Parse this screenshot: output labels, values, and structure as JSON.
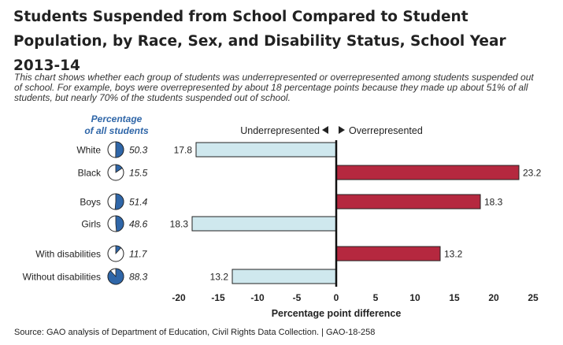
{
  "header": {
    "title": "Students Suspended from School Compared to Student Population, by Race, Sex, and Disability Status, School Year 2013-14"
  },
  "intro_text": "This chart shows whether each group of students was underrepresented or overrepresented among students suspended out of school. For example, boys were overrepresented by about 18 percentage points because they made up about 51% of all students, but nearly 70% of the students suspended out of school.",
  "source_text": "Source: GAO analysis of Department of Education, Civil Rights Data Collection.  |  GAO-18-258",
  "chart_data": {
    "type": "bar",
    "orientation": "horizontal",
    "population_header": [
      "Percentage",
      "of all students"
    ],
    "direction_label_under": "Underrepresented",
    "direction_label_over": "Overrepresented",
    "categories": [
      "White",
      "Black",
      "Boys",
      "Girls",
      "With disabilities",
      "Without disabilities"
    ],
    "population_percent": [
      50.3,
      15.5,
      51.4,
      48.6,
      11.7,
      88.3
    ],
    "values": [
      -17.8,
      23.2,
      18.3,
      -18.3,
      13.2,
      -13.2
    ],
    "value_labels": [
      "17.8",
      "23.2",
      "18.3",
      "18.3",
      "13.2",
      "13.2"
    ],
    "groups": [
      [
        "White",
        "Black"
      ],
      [
        "Boys",
        "Girls"
      ],
      [
        "With disabilities",
        "Without disabilities"
      ]
    ],
    "xlabel": "Percentage point difference",
    "xlim": [
      -20,
      25
    ],
    "xticks": [
      -20,
      -15,
      -10,
      -5,
      0,
      5,
      10,
      15,
      20,
      25
    ],
    "colors": {
      "overrepresented": "#b5283f",
      "underrepresented": "#cfe8ee",
      "pie_fill": "#2f66a8",
      "outline": "#222222"
    }
  }
}
